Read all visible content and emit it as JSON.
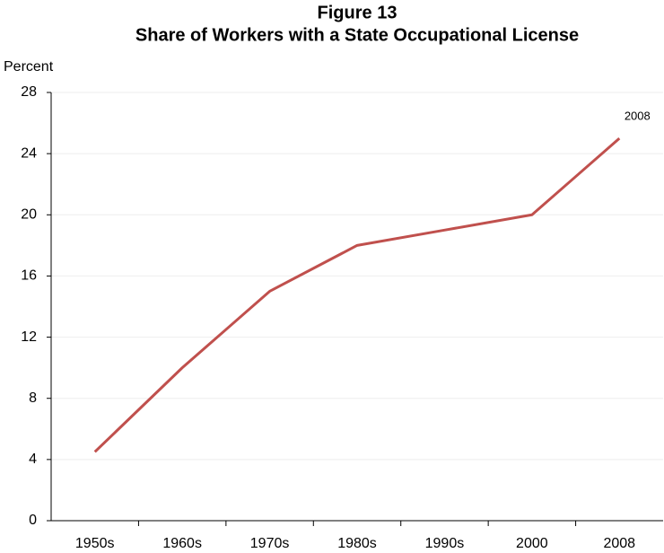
{
  "chart_data": {
    "type": "line",
    "title": "Figure 13",
    "subtitle": "Share of Workers with a State Occupational License",
    "ylabel": "Percent",
    "categories": [
      "1950s",
      "1960s",
      "1970s",
      "1980s",
      "1990s",
      "2000",
      "2008"
    ],
    "series": [
      {
        "name": "Share of workers",
        "color": "#c0504d",
        "values": [
          4.5,
          10,
          15,
          18,
          19,
          20,
          25
        ]
      }
    ],
    "annotation": "2008",
    "ylim": [
      0,
      28
    ],
    "yticks": [
      0,
      4,
      8,
      12,
      16,
      20,
      24,
      28
    ],
    "grid": true
  }
}
